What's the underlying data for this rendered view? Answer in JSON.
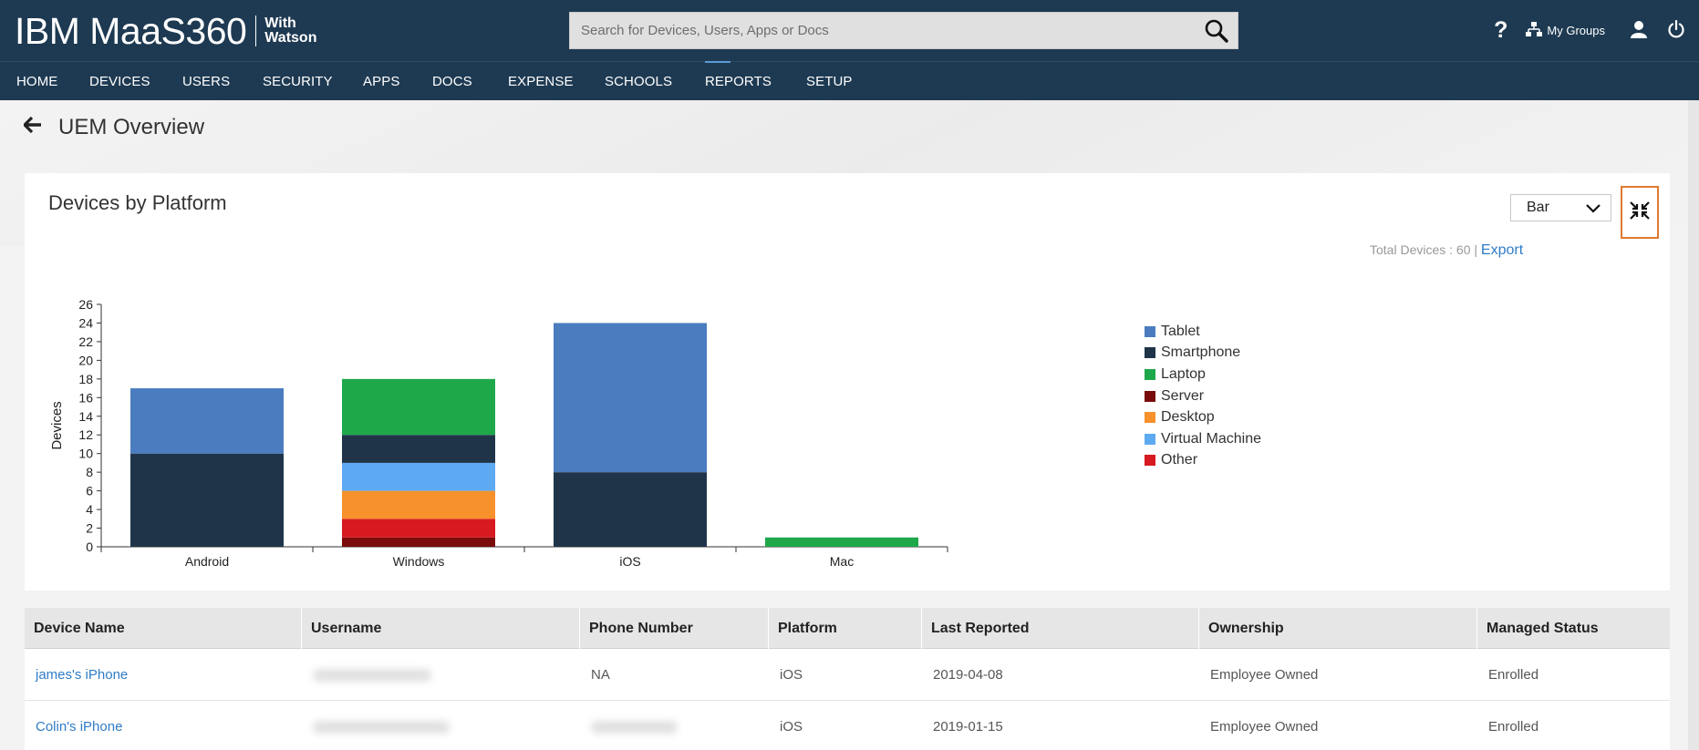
{
  "header": {
    "brand": "IBM MaaS360",
    "brand_sub": "With Watson",
    "search_placeholder": "Search for Devices, Users, Apps or Docs",
    "help_label": "?",
    "my_groups_label": "My Groups"
  },
  "nav": [
    {
      "label": "HOME"
    },
    {
      "label": "DEVICES"
    },
    {
      "label": "USERS"
    },
    {
      "label": "SECURITY"
    },
    {
      "label": "APPS"
    },
    {
      "label": "DOCS"
    },
    {
      "label": "EXPENSE"
    },
    {
      "label": "SCHOOLS"
    },
    {
      "label": "REPORTS",
      "active": true
    },
    {
      "label": "SETUP"
    }
  ],
  "page": {
    "title": "UEM Overview"
  },
  "card": {
    "title": "Devices by Platform",
    "chart_type_value": "Bar",
    "total_label": "Total Devices : 60 |",
    "export_label": "Export"
  },
  "chart_data": {
    "type": "bar",
    "stacked": true,
    "categories": [
      "Android",
      "Windows",
      "iOS",
      "Mac"
    ],
    "ylabel": "Devices",
    "ylim": [
      0,
      26
    ],
    "yticks": [
      0,
      2,
      4,
      6,
      8,
      10,
      12,
      14,
      16,
      18,
      20,
      22,
      24,
      26
    ],
    "legend_position": "right",
    "series": [
      {
        "name": "Server",
        "color": "#7a0c0c",
        "values": [
          0,
          1,
          0,
          0
        ]
      },
      {
        "name": "Other",
        "color": "#d71920",
        "values": [
          0,
          2,
          0,
          0
        ]
      },
      {
        "name": "Desktop",
        "color": "#f7912c",
        "values": [
          0,
          3,
          0,
          0
        ]
      },
      {
        "name": "Virtual Machine",
        "color": "#5eaaf2",
        "values": [
          0,
          3,
          0,
          0
        ]
      },
      {
        "name": "Smartphone",
        "color": "#1f3449",
        "values": [
          10,
          3,
          8,
          0
        ]
      },
      {
        "name": "Laptop",
        "color": "#1fa84a",
        "values": [
          0,
          6,
          0,
          1
        ]
      },
      {
        "name": "Tablet",
        "color": "#4a7cbf",
        "values": [
          7,
          0,
          16,
          0
        ]
      }
    ],
    "legend_order": [
      "Tablet",
      "Smartphone",
      "Laptop",
      "Server",
      "Desktop",
      "Virtual Machine",
      "Other"
    ]
  },
  "table": {
    "columns": [
      "Device Name",
      "Username",
      "Phone Number",
      "Platform",
      "Last Reported",
      "Ownership",
      "Managed Status"
    ],
    "rows": [
      {
        "device": "james's iPhone",
        "phone": "NA",
        "platform": "iOS",
        "last_reported": "2019-04-08",
        "ownership": "Employee Owned",
        "status": "Enrolled"
      },
      {
        "device": "Colin's iPhone",
        "phone": "",
        "platform": "iOS",
        "last_reported": "2019-01-15",
        "ownership": "Employee Owned",
        "status": "Enrolled"
      }
    ]
  }
}
